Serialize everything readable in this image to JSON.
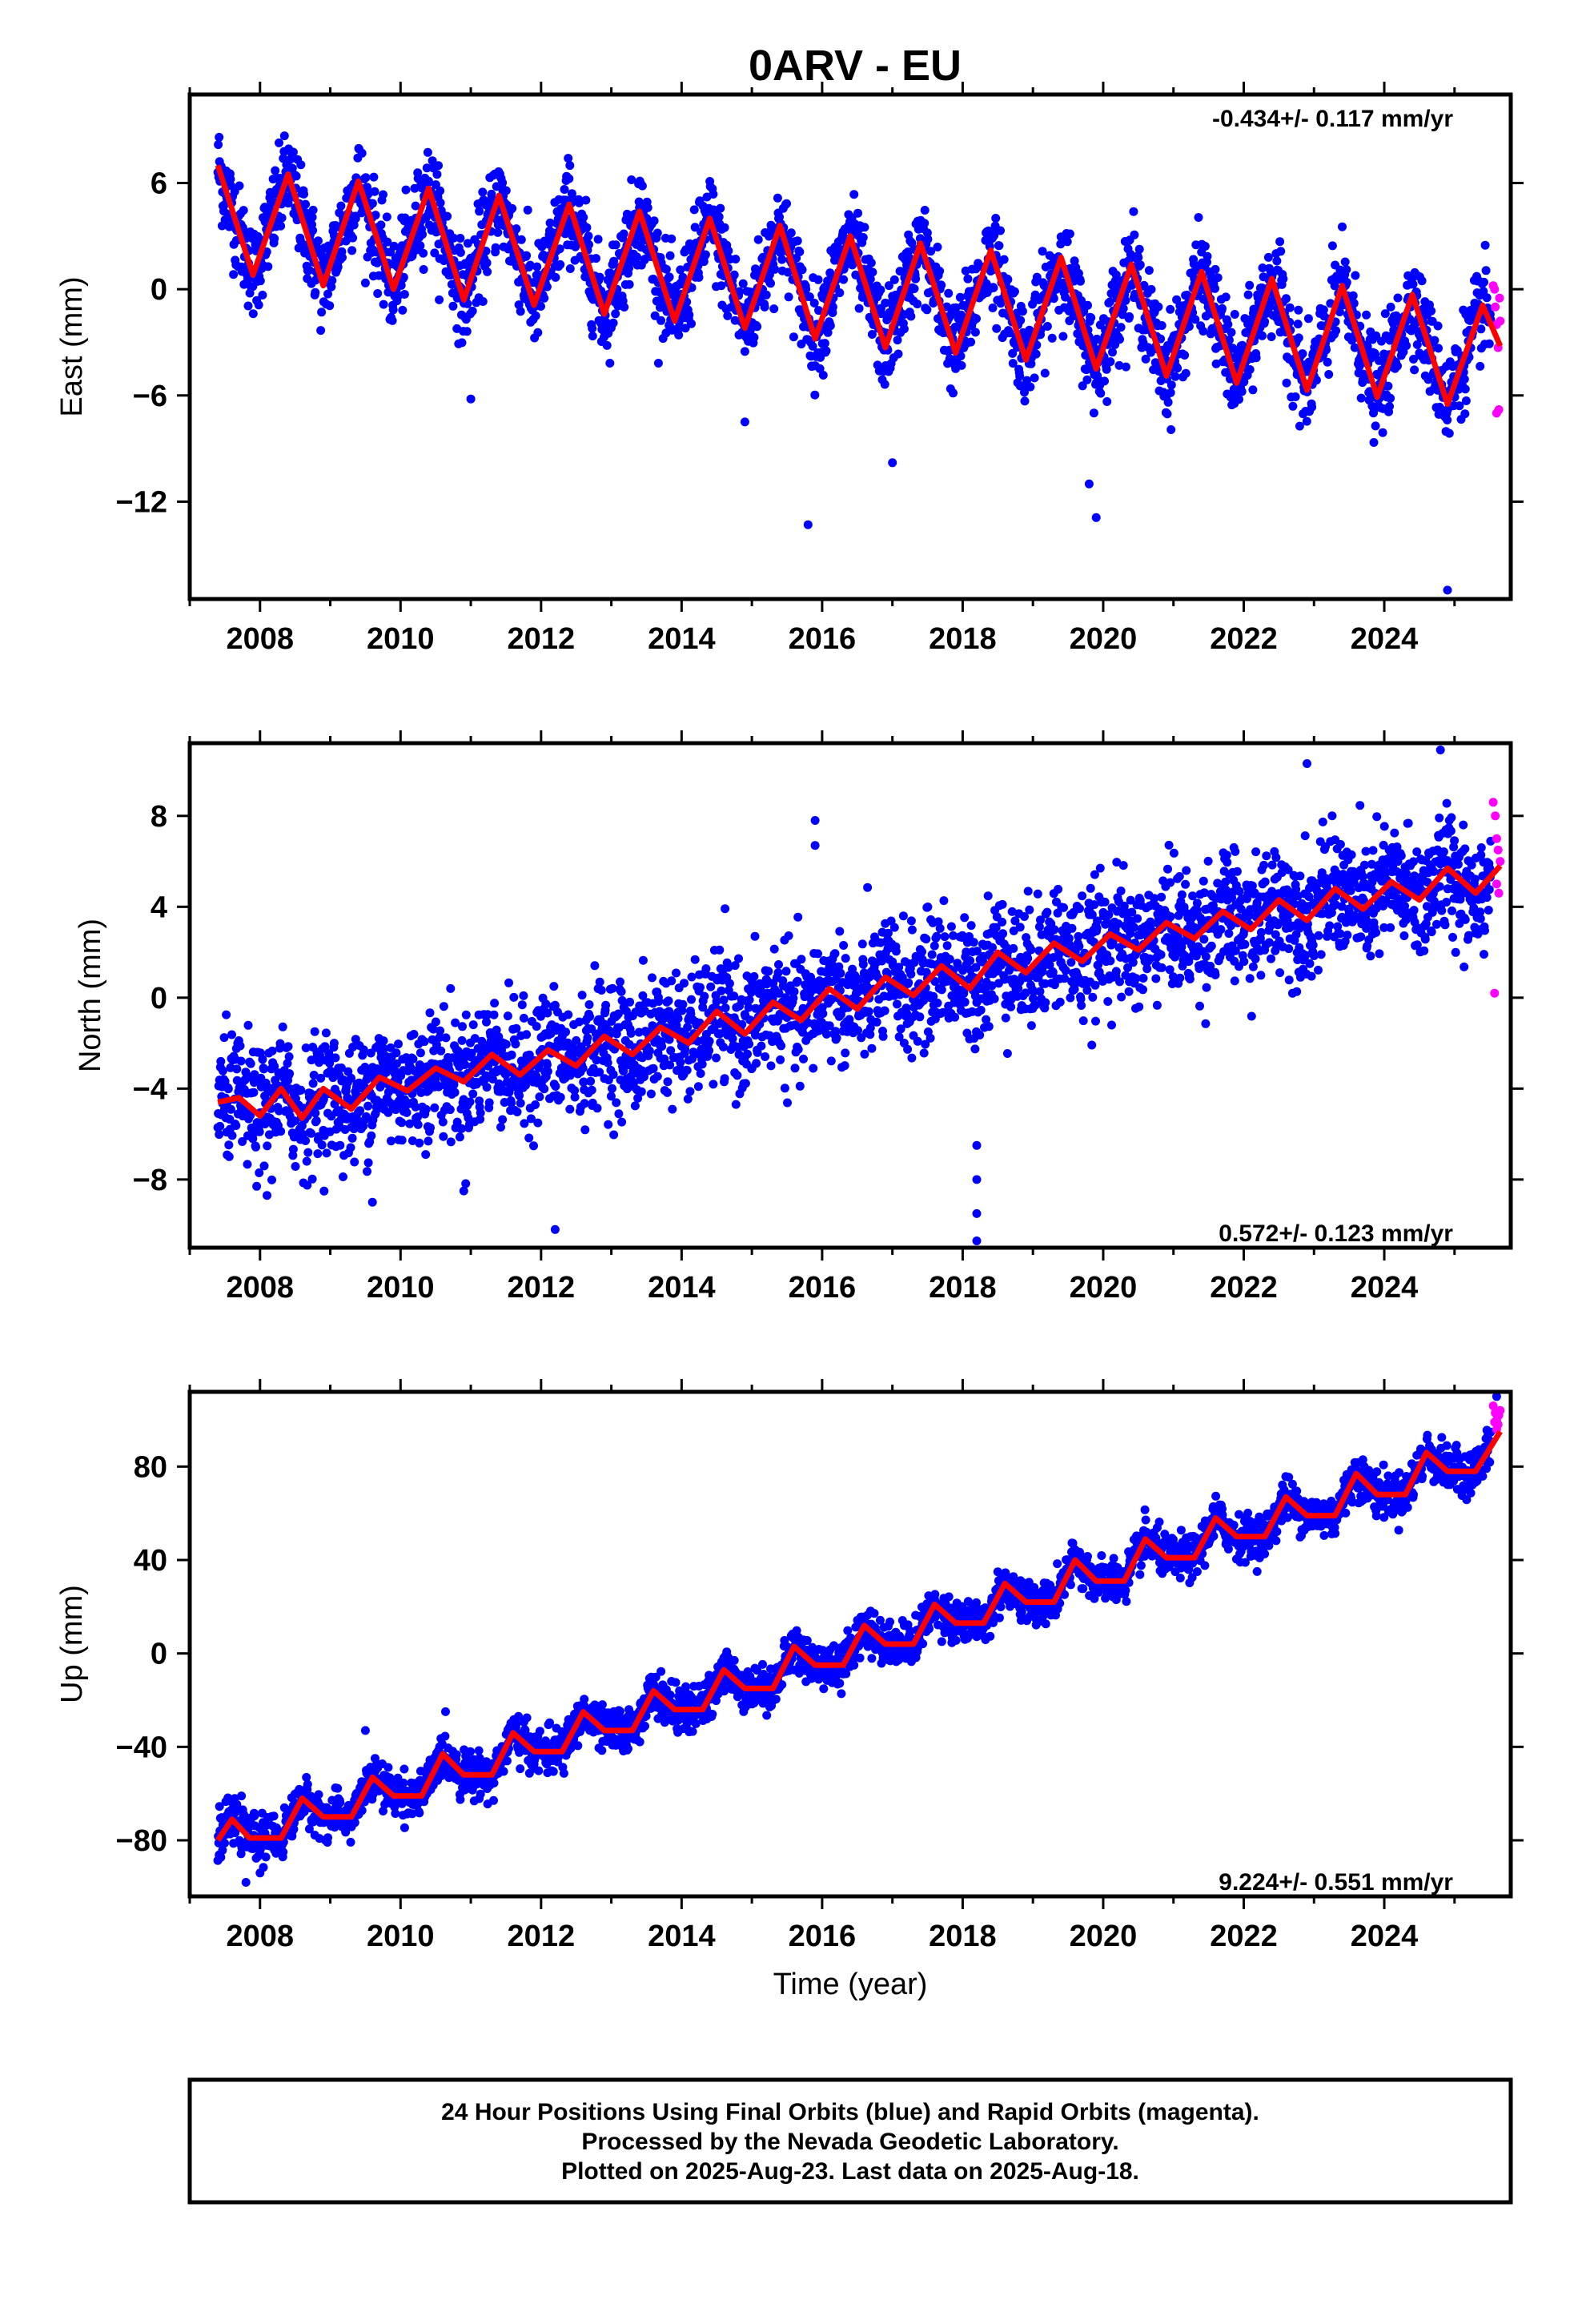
{
  "chart_data": {
    "type": "scatter",
    "title": "0ARV - EU",
    "xlabel": "Time (year)",
    "x_ticks": [
      2008,
      2010,
      2012,
      2014,
      2016,
      2018,
      2020,
      2022,
      2024
    ],
    "xlim": [
      2007.0,
      2025.8
    ],
    "final_color": "#0000ff",
    "rapid_color": "#ff00ff",
    "model_color": "#ff0000",
    "panels": [
      {
        "id": "east",
        "ylabel": "East (mm)",
        "rate_text": "-0.434+/- 0.117 mm/yr",
        "rate_position": "top-right",
        "ylim": [
          -17.5,
          11.0
        ],
        "y_ticks": [
          6,
          0,
          -6,
          -12
        ],
        "start": [
          2007.4,
          4.0
        ],
        "slope_mm_per_yr": -0.434,
        "seasonal_amplitude": 2.8,
        "noise_mm": 1.3,
        "outliers": [
          [
            2015.8,
            -13.3
          ],
          [
            2019.9,
            -12.9
          ],
          [
            2024.9,
            -17.0
          ],
          [
            2011.0,
            -6.2
          ],
          [
            2019.8,
            -11.0
          ],
          [
            2017.0,
            -9.8
          ],
          [
            2014.9,
            -7.5
          ]
        ],
        "model": [
          [
            2007.4,
            7.0
          ],
          [
            2007.9,
            0.8
          ],
          [
            2008.4,
            6.5
          ],
          [
            2008.9,
            0.2
          ],
          [
            2009.4,
            6.1
          ],
          [
            2009.9,
            0.0
          ],
          [
            2010.4,
            5.7
          ],
          [
            2010.9,
            -0.6
          ],
          [
            2011.4,
            5.3
          ],
          [
            2011.9,
            -0.9
          ],
          [
            2012.4,
            4.8
          ],
          [
            2012.9,
            -1.4
          ],
          [
            2013.4,
            4.4
          ],
          [
            2013.9,
            -1.8
          ],
          [
            2014.4,
            4.0
          ],
          [
            2014.9,
            -2.2
          ],
          [
            2015.4,
            3.6
          ],
          [
            2015.9,
            -2.8
          ],
          [
            2016.4,
            3.0
          ],
          [
            2016.9,
            -3.3
          ],
          [
            2017.4,
            2.6
          ],
          [
            2017.9,
            -3.6
          ],
          [
            2018.4,
            2.2
          ],
          [
            2018.9,
            -4.0
          ],
          [
            2019.4,
            1.8
          ],
          [
            2019.9,
            -4.5
          ],
          [
            2020.4,
            1.4
          ],
          [
            2020.9,
            -4.9
          ],
          [
            2021.4,
            1.0
          ],
          [
            2021.9,
            -5.3
          ],
          [
            2022.4,
            0.6
          ],
          [
            2022.9,
            -5.7
          ],
          [
            2023.4,
            0.2
          ],
          [
            2023.9,
            -6.1
          ],
          [
            2024.4,
            -0.3
          ],
          [
            2024.9,
            -6.5
          ],
          [
            2025.4,
            -0.9
          ],
          [
            2025.65,
            -3.2
          ]
        ],
        "rapid_points": [
          [
            2025.55,
            0.2
          ],
          [
            2025.58,
            -1.0
          ],
          [
            2025.6,
            -2.0
          ],
          [
            2025.62,
            -3.3
          ],
          [
            2025.64,
            -0.5
          ],
          [
            2025.6,
            -7.0
          ],
          [
            2025.63,
            -6.8
          ],
          [
            2025.57,
            0.0
          ],
          [
            2025.65,
            -1.8
          ]
        ]
      },
      {
        "id": "north",
        "ylabel": "North (mm)",
        "rate_text": "0.572+/- 0.123 mm/yr",
        "rate_position": "bottom-right",
        "ylim": [
          -11.0,
          11.2
        ],
        "y_ticks": [
          8,
          4,
          0,
          -4,
          -8
        ],
        "start": [
          2007.4,
          -4.5
        ],
        "slope_mm_per_yr": 0.572,
        "seasonal_amplitude": 0.7,
        "noise_mm": 1.35,
        "outliers": [
          [
            2018.2,
            -6.5
          ],
          [
            2018.2,
            -8.0
          ],
          [
            2018.2,
            -9.5
          ],
          [
            2018.2,
            -10.7
          ],
          [
            2015.9,
            7.8
          ],
          [
            2015.9,
            6.7
          ],
          [
            2012.2,
            -10.2
          ],
          [
            2022.9,
            10.3
          ],
          [
            2024.8,
            10.9
          ],
          [
            2008.1,
            -8.7
          ],
          [
            2009.6,
            -9.0
          ],
          [
            2010.9,
            -8.5
          ]
        ],
        "model": [
          [
            2007.4,
            -4.6
          ],
          [
            2007.7,
            -4.4
          ],
          [
            2008.0,
            -5.2
          ],
          [
            2008.3,
            -4.0
          ],
          [
            2008.6,
            -5.3
          ],
          [
            2008.9,
            -4.0
          ],
          [
            2009.3,
            -4.9
          ],
          [
            2009.7,
            -3.5
          ],
          [
            2010.1,
            -4.1
          ],
          [
            2010.5,
            -3.1
          ],
          [
            2010.9,
            -3.7
          ],
          [
            2011.3,
            -2.5
          ],
          [
            2011.7,
            -3.4
          ],
          [
            2012.1,
            -2.3
          ],
          [
            2012.5,
            -3.0
          ],
          [
            2012.9,
            -1.7
          ],
          [
            2013.3,
            -2.5
          ],
          [
            2013.7,
            -1.3
          ],
          [
            2014.1,
            -2.0
          ],
          [
            2014.5,
            -0.6
          ],
          [
            2014.9,
            -1.6
          ],
          [
            2015.3,
            -0.2
          ],
          [
            2015.7,
            -1.0
          ],
          [
            2016.1,
            0.4
          ],
          [
            2016.5,
            -0.5
          ],
          [
            2016.9,
            0.9
          ],
          [
            2017.3,
            0.1
          ],
          [
            2017.7,
            1.4
          ],
          [
            2018.1,
            0.4
          ],
          [
            2018.5,
            2.0
          ],
          [
            2018.9,
            1.1
          ],
          [
            2019.3,
            2.4
          ],
          [
            2019.7,
            1.6
          ],
          [
            2020.1,
            2.8
          ],
          [
            2020.5,
            2.1
          ],
          [
            2020.9,
            3.3
          ],
          [
            2021.3,
            2.6
          ],
          [
            2021.7,
            3.8
          ],
          [
            2022.1,
            3.0
          ],
          [
            2022.5,
            4.3
          ],
          [
            2022.9,
            3.4
          ],
          [
            2023.3,
            4.8
          ],
          [
            2023.7,
            3.9
          ],
          [
            2024.1,
            5.1
          ],
          [
            2024.5,
            4.3
          ],
          [
            2024.9,
            5.7
          ],
          [
            2025.3,
            4.6
          ],
          [
            2025.65,
            5.8
          ]
        ],
        "rapid_points": [
          [
            2025.55,
            8.6
          ],
          [
            2025.58,
            8.0
          ],
          [
            2025.6,
            7.0
          ],
          [
            2025.62,
            6.5
          ],
          [
            2025.6,
            5.0
          ],
          [
            2025.63,
            4.6
          ],
          [
            2025.57,
            0.2
          ],
          [
            2025.65,
            6.0
          ]
        ]
      },
      {
        "id": "up",
        "ylabel": "Up (mm)",
        "rate_text": "9.224+/- 0.551 mm/yr",
        "rate_position": "bottom-right",
        "ylim": [
          -104,
          112
        ],
        "y_ticks": [
          80,
          40,
          0,
          -40,
          -80
        ],
        "start": [
          2007.4,
          -80.0
        ],
        "slope_mm_per_yr": 9.224,
        "seasonal_amplitude": 4.5,
        "noise_mm": 4.5,
        "outliers": [
          [
            2007.8,
            -98.0
          ],
          [
            2008.0,
            -94.0
          ],
          [
            2009.5,
            -33.0
          ],
          [
            2025.6,
            110.0
          ]
        ],
        "model": [
          [
            2007.4,
            -80
          ],
          [
            2007.6,
            -71
          ],
          [
            2007.85,
            -79
          ],
          [
            2008.3,
            -79
          ],
          [
            2008.6,
            -62
          ],
          [
            2008.9,
            -70
          ],
          [
            2009.3,
            -70
          ],
          [
            2009.6,
            -53
          ],
          [
            2009.9,
            -61
          ],
          [
            2010.3,
            -61
          ],
          [
            2010.6,
            -43
          ],
          [
            2010.9,
            -52
          ],
          [
            2011.3,
            -52
          ],
          [
            2011.6,
            -34
          ],
          [
            2011.9,
            -42
          ],
          [
            2012.3,
            -42
          ],
          [
            2012.6,
            -25
          ],
          [
            2012.9,
            -33
          ],
          [
            2013.3,
            -33
          ],
          [
            2013.6,
            -16
          ],
          [
            2013.9,
            -24
          ],
          [
            2014.3,
            -24
          ],
          [
            2014.6,
            -7
          ],
          [
            2014.9,
            -15
          ],
          [
            2015.3,
            -15
          ],
          [
            2015.6,
            3
          ],
          [
            2015.9,
            -5
          ],
          [
            2016.3,
            -5
          ],
          [
            2016.6,
            12
          ],
          [
            2016.9,
            4
          ],
          [
            2017.3,
            4
          ],
          [
            2017.6,
            21
          ],
          [
            2017.9,
            13
          ],
          [
            2018.3,
            13
          ],
          [
            2018.6,
            30
          ],
          [
            2018.9,
            22
          ],
          [
            2019.3,
            22
          ],
          [
            2019.6,
            40
          ],
          [
            2019.9,
            31
          ],
          [
            2020.3,
            31
          ],
          [
            2020.6,
            49
          ],
          [
            2020.9,
            41
          ],
          [
            2021.3,
            41
          ],
          [
            2021.6,
            58
          ],
          [
            2021.9,
            50
          ],
          [
            2022.3,
            50
          ],
          [
            2022.6,
            67
          ],
          [
            2022.9,
            59
          ],
          [
            2023.3,
            59
          ],
          [
            2023.6,
            77
          ],
          [
            2023.9,
            68
          ],
          [
            2024.3,
            68
          ],
          [
            2024.6,
            86
          ],
          [
            2024.9,
            78
          ],
          [
            2025.3,
            78
          ],
          [
            2025.65,
            95
          ]
        ],
        "rapid_points": [
          [
            2025.55,
            106
          ],
          [
            2025.58,
            103
          ],
          [
            2025.6,
            100
          ],
          [
            2025.62,
            98
          ],
          [
            2025.6,
            96
          ],
          [
            2025.63,
            102
          ],
          [
            2025.57,
            99
          ],
          [
            2025.65,
            104
          ]
        ]
      }
    ],
    "notes": [
      "24 Hour Positions Using Final Orbits (blue) and Rapid Orbits (magenta).",
      "Processed by the Nevada Geodetic Laboratory.",
      "Plotted on 2025-Aug-23. Last data on 2025-Aug-18."
    ]
  }
}
